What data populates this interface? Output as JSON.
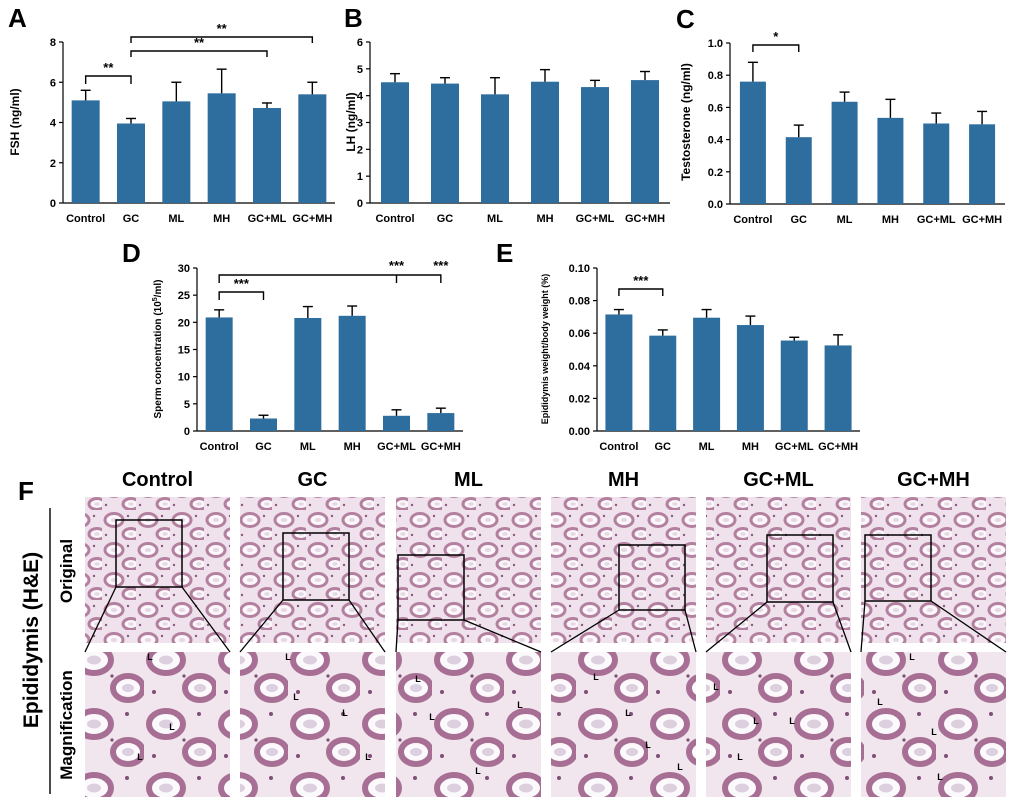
{
  "panel_f": {
    "letter": "F",
    "side_title": "Epididymis (H&E)",
    "row_titles": [
      "Original",
      "Magnification"
    ],
    "groups": [
      "Control",
      "GC",
      "ML",
      "MH",
      "GC+ML",
      "GC+MH"
    ],
    "lumen_label": "L"
  },
  "chart_data": [
    {
      "panel": "A",
      "type": "bar",
      "categories": [
        "Control",
        "GC",
        "ML",
        "MH",
        "GC+ML",
        "GC+MH"
      ],
      "values": [
        5.1,
        3.95,
        5.05,
        5.45,
        4.72,
        5.4
      ],
      "errors": [
        0.5,
        0.25,
        0.95,
        1.2,
        0.25,
        0.6
      ],
      "title": "",
      "xlabel": "",
      "ylabel": "FSH (ng/ml)",
      "ylim": [
        0,
        8
      ],
      "yticks": [
        "0",
        "2",
        "4",
        "6",
        "8"
      ],
      "significance": [
        {
          "from": "Control",
          "to": "GC",
          "label": "**"
        },
        {
          "from": "GC",
          "to": "GC+ML",
          "label": "**"
        },
        {
          "from": "GC",
          "to": "GC+MH",
          "label": "**"
        }
      ],
      "grid": false,
      "bar_color": "#2e6e9e"
    },
    {
      "panel": "B",
      "type": "bar",
      "categories": [
        "Control",
        "GC",
        "ML",
        "MH",
        "GC+ML",
        "GC+MH"
      ],
      "values": [
        4.5,
        4.45,
        4.05,
        4.52,
        4.32,
        4.58
      ],
      "errors": [
        0.32,
        0.22,
        0.62,
        0.45,
        0.25,
        0.32
      ],
      "title": "",
      "xlabel": "",
      "ylabel": "LH (ng/ml)",
      "ylim": [
        0,
        6
      ],
      "yticks": [
        "0",
        "1",
        "2",
        "3",
        "4",
        "5",
        "6"
      ],
      "significance": [],
      "grid": false,
      "bar_color": "#2e6e9e"
    },
    {
      "panel": "C",
      "type": "bar",
      "categories": [
        "Control",
        "GC",
        "ML",
        "MH",
        "GC+ML",
        "GC+MH"
      ],
      "values": [
        0.76,
        0.415,
        0.635,
        0.535,
        0.5,
        0.495
      ],
      "errors": [
        0.12,
        0.075,
        0.06,
        0.115,
        0.065,
        0.08
      ],
      "title": "",
      "xlabel": "",
      "ylabel": "Testosterone (ng/ml)",
      "ylim": [
        0,
        1.0
      ],
      "yticks": [
        "0.0",
        "0.2",
        "0.4",
        "0.6",
        "0.8",
        "1.0"
      ],
      "significance": [
        {
          "from": "Control",
          "to": "GC",
          "label": "*"
        }
      ],
      "grid": false,
      "bar_color": "#2e6e9e"
    },
    {
      "panel": "D",
      "type": "bar",
      "categories": [
        "Control",
        "GC",
        "ML",
        "MH",
        "GC+ML",
        "GC+MH"
      ],
      "values": [
        20.9,
        2.3,
        20.8,
        21.2,
        2.8,
        3.3
      ],
      "errors": [
        1.4,
        0.6,
        2.1,
        1.8,
        1.1,
        0.9
      ],
      "title": "",
      "xlabel": "",
      "ylabel": "Sperm concentration (10",
      "ylabel_sup": "5",
      "ylabel_tail": "/ml)",
      "ylim": [
        0,
        30
      ],
      "yticks": [
        "0",
        "5",
        "10",
        "15",
        "20",
        "25",
        "30"
      ],
      "significance": [
        {
          "from": "Control",
          "to": "GC",
          "label": "***"
        },
        {
          "from": "Control",
          "to": "GC+ML",
          "label": "***"
        },
        {
          "from": "Control",
          "to": "GC+MH",
          "label": "***"
        }
      ],
      "grid": false,
      "bar_color": "#2e6e9e"
    },
    {
      "panel": "E",
      "type": "bar",
      "categories": [
        "Control",
        "GC",
        "ML",
        "MH",
        "GC+ML",
        "GC+MH"
      ],
      "values": [
        0.0715,
        0.0585,
        0.0695,
        0.065,
        0.0555,
        0.0525
      ],
      "errors": [
        0.003,
        0.0035,
        0.005,
        0.0055,
        0.002,
        0.0065
      ],
      "title": "",
      "xlabel": "",
      "ylabel": "Epididymis weight/body weight (%)",
      "ylim": [
        0,
        0.1
      ],
      "yticks": [
        "0.00",
        "0.02",
        "0.04",
        "0.06",
        "0.08",
        "0.10"
      ],
      "significance": [
        {
          "from": "Control",
          "to": "GC",
          "label": "***"
        }
      ],
      "grid": false,
      "bar_color": "#2e6e9e"
    }
  ]
}
